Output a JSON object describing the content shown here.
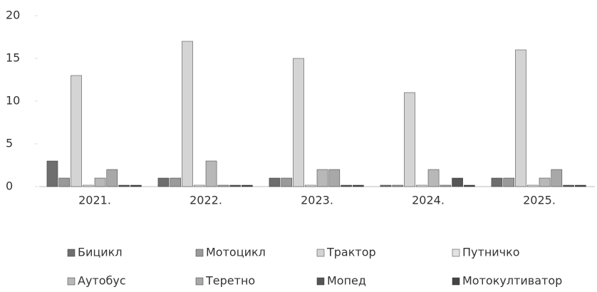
{
  "chart_data": {
    "type": "bar",
    "categories": [
      "2021.",
      "2022.",
      "2023.",
      "2024.",
      "2025."
    ],
    "series": [
      {
        "name": "Бицикл",
        "color": "#6e6e6e",
        "values": [
          3,
          1,
          1,
          0,
          1
        ]
      },
      {
        "name": "Мотоцикл",
        "color": "#9a9a9a",
        "values": [
          1,
          1,
          1,
          0,
          1
        ]
      },
      {
        "name": "Трактор",
        "color": "#d4d4d4",
        "values": [
          13,
          17,
          15,
          11,
          16
        ]
      },
      {
        "name": "Путничко",
        "color": "#e2e2e2",
        "values": [
          0,
          0,
          0,
          0,
          0
        ]
      },
      {
        "name": "Аутобус",
        "color": "#b8b8b8",
        "values": [
          1,
          3,
          2,
          2,
          1
        ]
      },
      {
        "name": "Теретно",
        "color": "#a8a8a8",
        "values": [
          2,
          0,
          2,
          0,
          2
        ]
      },
      {
        "name": "Мопед",
        "color": "#555555",
        "values": [
          0,
          0,
          0,
          1,
          0
        ]
      },
      {
        "name": "Мотокултиватор",
        "color": "#444444",
        "values": [
          0,
          0,
          0,
          0,
          0
        ]
      }
    ],
    "ylim": [
      0,
      20
    ],
    "yticks": [
      0,
      5,
      10,
      15,
      20
    ],
    "legend": "bottom"
  }
}
